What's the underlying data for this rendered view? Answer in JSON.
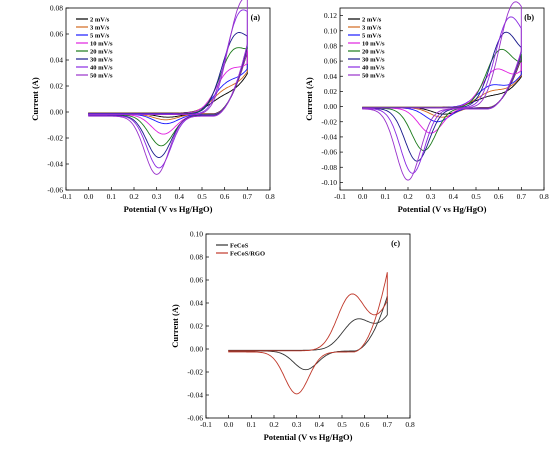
{
  "chart_data": [
    {
      "type": "line",
      "panel_label": "(a)",
      "xlabel": "Potential (V vs Hg/HgO)",
      "ylabel": "Current (A)",
      "xlim": [
        -0.1,
        0.8
      ],
      "ylim": [
        -0.06,
        0.08
      ],
      "xticks": [
        "-0.1",
        "0.0",
        "0.1",
        "0.2",
        "0.3",
        "0.4",
        "0.5",
        "0.6",
        "0.7",
        "0.8"
      ],
      "yticks": [
        "-0.06",
        "-0.04",
        "-0.02",
        "0.00",
        "0.02",
        "0.04",
        "0.06",
        "0.08"
      ],
      "legend_position": "top-left",
      "grid": false,
      "series": [
        {
          "name": "2 mV/s",
          "color": "#000000",
          "ox": 0.58,
          "oy": 0.008,
          "ex": 0.7,
          "ey": 0.053,
          "rx": 0.35,
          "ry": -0.004,
          "s": 0.4
        },
        {
          "name": "3 mV/s",
          "color": "#d2691e",
          "ox": 0.59,
          "oy": 0.012,
          "ex": 0.7,
          "ey": 0.054,
          "rx": 0.34,
          "ry": -0.006,
          "s": 0.48
        },
        {
          "name": "5 mV/s",
          "color": "#1a1aff",
          "ox": 0.6,
          "oy": 0.016,
          "ex": 0.7,
          "ey": 0.055,
          "rx": 0.34,
          "ry": -0.009,
          "s": 0.56
        },
        {
          "name": "10 mV/s",
          "color": "#e020e0",
          "ox": 0.61,
          "oy": 0.024,
          "ex": 0.7,
          "ey": 0.056,
          "rx": 0.33,
          "ry": -0.017,
          "s": 0.64
        },
        {
          "name": "20 mV/s",
          "color": "#1a7a1a",
          "ox": 0.63,
          "oy": 0.036,
          "ex": 0.7,
          "ey": 0.058,
          "rx": 0.32,
          "ry": -0.026,
          "s": 0.72
        },
        {
          "name": "30 mV/s",
          "color": "#1a1a8c",
          "ox": 0.64,
          "oy": 0.046,
          "ex": 0.7,
          "ey": 0.059,
          "rx": 0.31,
          "ry": -0.035,
          "s": 0.82
        },
        {
          "name": "40 mV/s",
          "color": "#8a2be2",
          "ox": 0.66,
          "oy": 0.058,
          "ex": 0.7,
          "ey": 0.061,
          "rx": 0.31,
          "ry": -0.043,
          "s": 0.9
        },
        {
          "name": "50 mV/s",
          "color": "#9932cc",
          "ox": 0.67,
          "oy": 0.064,
          "ex": 0.7,
          "ey": 0.062,
          "rx": 0.3,
          "ry": -0.048,
          "s": 1.0
        }
      ]
    },
    {
      "type": "line",
      "panel_label": "(b)",
      "xlabel": "Potential (V vs Hg/HgO)",
      "ylabel": "Current (A)",
      "xlim": [
        -0.1,
        0.8
      ],
      "ylim": [
        -0.11,
        0.13
      ],
      "xticks": [
        "-0.1",
        "0.0",
        "0.1",
        "0.2",
        "0.3",
        "0.4",
        "0.5",
        "0.6",
        "0.7",
        "0.8"
      ],
      "yticks": [
        "-0.10",
        "-0.08",
        "-0.06",
        "-0.04",
        "-0.02",
        "0.00",
        "0.02",
        "0.04",
        "0.06",
        "0.08",
        "0.10",
        "0.12"
      ],
      "legend_position": "top-left",
      "grid": false,
      "series": [
        {
          "name": "2 mV/s",
          "color": "#000000",
          "ox": 0.55,
          "oy": 0.012,
          "ex": 0.7,
          "ey": 0.072,
          "rx": 0.36,
          "ry": -0.01,
          "s": 0.4
        },
        {
          "name": "3 mV/s",
          "color": "#d2691e",
          "ox": 0.56,
          "oy": 0.018,
          "ex": 0.7,
          "ey": 0.074,
          "rx": 0.35,
          "ry": -0.014,
          "s": 0.48
        },
        {
          "name": "5 mV/s",
          "color": "#1a1aff",
          "ox": 0.56,
          "oy": 0.026,
          "ex": 0.7,
          "ey": 0.076,
          "rx": 0.33,
          "ry": -0.02,
          "s": 0.56
        },
        {
          "name": "10 mV/s",
          "color": "#e020e0",
          "ox": 0.58,
          "oy": 0.045,
          "ex": 0.7,
          "ey": 0.078,
          "rx": 0.3,
          "ry": -0.035,
          "s": 0.64
        },
        {
          "name": "20 mV/s",
          "color": "#1a7a1a",
          "ox": 0.6,
          "oy": 0.068,
          "ex": 0.7,
          "ey": 0.08,
          "rx": 0.27,
          "ry": -0.058,
          "s": 0.72
        },
        {
          "name": "30 mV/s",
          "color": "#1a1a8c",
          "ox": 0.62,
          "oy": 0.086,
          "ex": 0.7,
          "ey": 0.082,
          "rx": 0.24,
          "ry": -0.072,
          "s": 0.82
        },
        {
          "name": "40 mV/s",
          "color": "#8a2be2",
          "ox": 0.64,
          "oy": 0.1,
          "ex": 0.7,
          "ey": 0.084,
          "rx": 0.22,
          "ry": -0.088,
          "s": 0.9
        },
        {
          "name": "50 mV/s",
          "color": "#9932cc",
          "ox": 0.66,
          "oy": 0.112,
          "ex": 0.7,
          "ey": 0.086,
          "rx": 0.2,
          "ry": -0.097,
          "s": 1.0
        }
      ]
    },
    {
      "type": "line",
      "panel_label": "(c)",
      "xlabel": "Potential (V vs Hg/HgO)",
      "ylabel": "Current (A)",
      "xlim": [
        -0.1,
        0.8
      ],
      "ylim": [
        -0.06,
        0.1
      ],
      "xticks": [
        "-0.1",
        "0.0",
        "0.1",
        "0.2",
        "0.3",
        "0.4",
        "0.5",
        "0.6",
        "0.7",
        "0.8"
      ],
      "yticks": [
        "-0.06",
        "-0.04",
        "-0.02",
        "0.00",
        "0.02",
        "0.04",
        "0.06",
        "0.08",
        "0.10"
      ],
      "legend_position": "top-left",
      "grid": false,
      "series": [
        {
          "name": "FeCoS",
          "color": "#333333",
          "ox": 0.56,
          "oy": 0.025,
          "ex": 0.7,
          "ey": 0.053,
          "rx": 0.34,
          "ry": -0.018,
          "s": 0.55
        },
        {
          "name": "FeCoS/RGO",
          "color": "#c0392b",
          "ox": 0.54,
          "oy": 0.049,
          "ex": 0.7,
          "ey": 0.077,
          "rx": 0.3,
          "ry": -0.039,
          "s": 0.8
        }
      ]
    }
  ]
}
